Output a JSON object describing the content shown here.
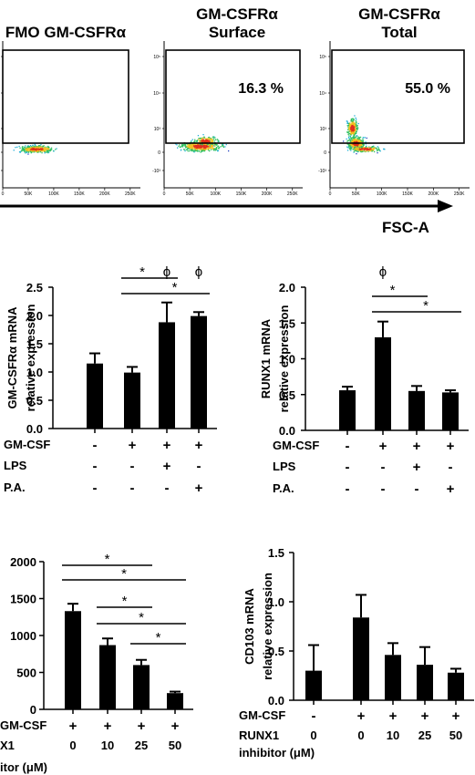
{
  "flow": {
    "titles": [
      [
        "FMO GM-CSFRα"
      ],
      [
        "GM-CSFRα",
        "Surface"
      ],
      [
        "GM-CSFRα",
        "Total"
      ]
    ],
    "percentages": [
      "",
      "16.3 %",
      "55.0 %"
    ],
    "axis_label": "FSC-A",
    "y_ticks": [
      "10⁵",
      "10⁴",
      "10³",
      "0",
      "-10³"
    ],
    "x_ticks": [
      "0",
      "50K",
      "100K",
      "150K",
      "200K",
      "250K"
    ]
  },
  "chart_data": [
    {
      "type": "bar",
      "ylabel": [
        "GM-CSFRα mRNA",
        "relative expression"
      ],
      "ylim": [
        0,
        2.5
      ],
      "yticks": [
        "0.0",
        "0.5",
        "1.0",
        "1.5",
        "2.0",
        "2.5"
      ],
      "values": [
        1.15,
        0.99,
        1.88,
        1.99
      ],
      "errors": [
        0.18,
        0.1,
        0.35,
        0.07
      ],
      "row_labels": [
        "GM-CSF",
        "LPS",
        "P.A."
      ],
      "rows": [
        [
          "-",
          "+",
          "+",
          "+"
        ],
        [
          "-",
          "-",
          "+",
          "-"
        ],
        [
          "-",
          "-",
          "-",
          "+"
        ]
      ],
      "phi": [
        "",
        "",
        "ϕ",
        "ϕ"
      ],
      "significance": [
        {
          "from": 1,
          "to": 2,
          "label": "*"
        },
        {
          "from": 1,
          "to": 3,
          "label": "*"
        }
      ]
    },
    {
      "type": "bar",
      "ylabel": [
        "RUNX1 mRNA",
        "relative expression"
      ],
      "ylim": [
        0,
        2.0
      ],
      "yticks": [
        "0.0",
        "0.5",
        "1.0",
        "1.5",
        "2.0"
      ],
      "values": [
        0.56,
        1.3,
        0.55,
        0.53
      ],
      "errors": [
        0.05,
        0.22,
        0.07,
        0.03
      ],
      "row_labels": [
        "GM-CSF",
        "LPS",
        "P.A."
      ],
      "rows": [
        [
          "-",
          "+",
          "+",
          "+"
        ],
        [
          "-",
          "-",
          "+",
          "-"
        ],
        [
          "-",
          "-",
          "-",
          "+"
        ]
      ],
      "phi": [
        "",
        "ϕ",
        "",
        ""
      ],
      "significance": [
        {
          "from": 1,
          "to": 2,
          "label": "*"
        },
        {
          "from": 1,
          "to": 3,
          "label": "*"
        }
      ]
    },
    {
      "type": "bar",
      "ylabel": [],
      "ylim": [
        0,
        2000
      ],
      "yticks": [
        "0",
        "500",
        "1000",
        "1500",
        "2000"
      ],
      "values": [
        1330,
        870,
        600,
        220
      ],
      "errors": [
        100,
        90,
        70,
        20
      ],
      "row_labels": [
        "GM-CSF",
        "X1",
        "itor (μM)"
      ],
      "rows": [
        [
          "+",
          "+",
          "+",
          "+"
        ],
        [
          "0",
          "10",
          "25",
          "50"
        ]
      ],
      "phi": [
        "",
        "",
        "",
        ""
      ],
      "significance": [
        {
          "from": 0,
          "to": 2,
          "label": "*"
        },
        {
          "from": 0,
          "to": 3,
          "label": "*"
        },
        {
          "from": 1,
          "to": 2,
          "label": "*"
        },
        {
          "from": 1,
          "to": 3,
          "label": "*"
        },
        {
          "from": 2,
          "to": 3,
          "label": "*"
        }
      ]
    },
    {
      "type": "bar",
      "ylabel": [
        "CD103 mRNA",
        "relative expression"
      ],
      "ylim": [
        0,
        1.5
      ],
      "yticks": [
        "0.0",
        "0.5",
        "1.0",
        "1.5"
      ],
      "values": [
        0.3,
        0.84,
        0.46,
        0.36,
        0.28
      ],
      "errors": [
        0.26,
        0.23,
        0.12,
        0.18,
        0.04
      ],
      "row_labels": [
        "GM-CSF",
        "RUNX1",
        "inhibitor (μM)"
      ],
      "rows": [
        [
          "-",
          "+",
          "+",
          "+",
          "+"
        ],
        [
          "0",
          "0",
          "10",
          "25",
          "50"
        ]
      ],
      "phi": [
        "",
        "",
        "",
        "",
        ""
      ],
      "significance": []
    }
  ]
}
